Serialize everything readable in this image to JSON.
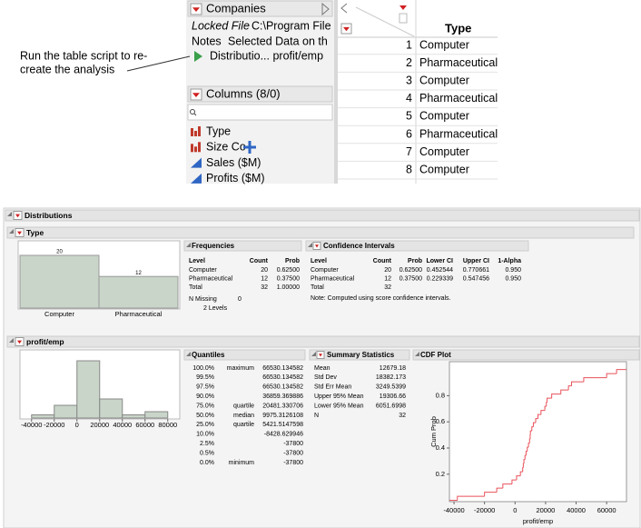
{
  "annotation": [
    "Run the table script to re-",
    "create the analysis"
  ],
  "data_table": {
    "title": "Companies",
    "locked": [
      "Locked File",
      "C:\\Program File"
    ],
    "notes": [
      "Notes",
      "Selected Data on th"
    ],
    "script": "Distributio... profit/emp",
    "columns_title": "Columns (8/0)",
    "columns": [
      "Type",
      "Size Co",
      "Sales ($M)",
      "Profits ($M)"
    ],
    "header": "Type",
    "rows": [
      [
        "1",
        "Computer"
      ],
      [
        "2",
        "Pharmaceutical"
      ],
      [
        "3",
        "Computer"
      ],
      [
        "4",
        "Pharmaceutical"
      ],
      [
        "5",
        "Computer"
      ],
      [
        "6",
        "Pharmaceutical"
      ],
      [
        "7",
        "Computer"
      ],
      [
        "8",
        "Computer"
      ]
    ]
  },
  "report": {
    "title": "Distributions",
    "type_section": {
      "title": "Type",
      "chart": {
        "type": "bar",
        "categories": [
          "Computer",
          "Pharmaceutical"
        ],
        "values": [
          20,
          12
        ],
        "color": "#c9d5c9"
      },
      "frequencies": {
        "title": "Frequencies",
        "header": [
          "Level",
          "Count",
          "Prob"
        ],
        "rows": [
          [
            "Computer",
            "20",
            "0.62500"
          ],
          [
            "Pharmaceutical",
            "12",
            "0.37500"
          ],
          [
            "Total",
            "32",
            "1.00000"
          ]
        ],
        "n_missing": [
          "N Missing",
          "0"
        ],
        "levels": "2 Levels"
      },
      "ci": {
        "title": "Confidence Intervals",
        "header": [
          "Level",
          "Count",
          "Prob",
          "Lower CI",
          "Upper CI",
          "1-Alpha"
        ],
        "rows": [
          [
            "Computer",
            "20",
            "0.62500",
            "0.452544",
            "0.770661",
            "0.950"
          ],
          [
            "Pharmaceutical",
            "12",
            "0.37500",
            "0.229339",
            "0.547456",
            "0.950"
          ],
          [
            "Total",
            "32"
          ]
        ],
        "note": "Note: Computed using score confidence intervals."
      }
    },
    "profit_section": {
      "title": "profit/emp",
      "histogram": {
        "type": "histogram",
        "bins": [
          -40000,
          -20000,
          0,
          20000,
          40000,
          60000,
          80000
        ],
        "counts": [
          1,
          4,
          18,
          6,
          1,
          2
        ],
        "color": "#c9d5c9",
        "xlim": [
          -47000,
          89000
        ],
        "xticks": [
          -40000,
          -20000,
          0,
          20000,
          40000,
          60000,
          80000
        ]
      },
      "quantiles": {
        "title": "Quantiles",
        "rows": [
          [
            "100.0%",
            "maximum",
            "66530.134582"
          ],
          [
            "99.5%",
            "66530.134582"
          ],
          [
            "97.5%",
            "66530.134582"
          ],
          [
            "90.0%",
            "36859.369886"
          ],
          [
            "75.0%",
            "quartile",
            "20481.330706"
          ],
          [
            "50.0%",
            "median",
            "9975.3126108"
          ],
          [
            "25.0%",
            "quartile",
            "5421.5147598"
          ],
          [
            "10.0%",
            "-8428.629946"
          ],
          [
            "2.5%",
            "-37800"
          ],
          [
            "0.5%",
            "-37800"
          ],
          [
            "0.0%",
            "minimum",
            "-37800"
          ]
        ]
      },
      "summary": {
        "title": "Summary Statistics",
        "rows": [
          [
            "Mean",
            "12679.18"
          ],
          [
            "Std Dev",
            "18382.173"
          ],
          [
            "Std Err Mean",
            "3249.5399"
          ],
          [
            "Upper 95% Mean",
            "19306.66"
          ],
          [
            "Lower 95% Mean",
            "6051.6998"
          ],
          [
            "N",
            "32"
          ]
        ]
      },
      "cdf": {
        "type": "line",
        "title": "CDF Plot",
        "xlabel": "profit/emp",
        "ylabel": "Cum Prob",
        "color": "#e8525a",
        "x": [
          -37800,
          -20000,
          -12000,
          -8000,
          -2000,
          1000,
          3500,
          5000,
          5400,
          5800,
          6500,
          7200,
          8000,
          8800,
          9500,
          9900,
          10050,
          11000,
          12000,
          13500,
          15000,
          17000,
          19500,
          20500,
          21000,
          24000,
          30000,
          35000,
          37000,
          45000,
          60000,
          66530
        ],
        "values": [
          0.03125,
          0.0625,
          0.09375,
          0.125,
          0.15625,
          0.1875,
          0.21875,
          0.25,
          0.28125,
          0.3125,
          0.34375,
          0.375,
          0.40625,
          0.4375,
          0.46875,
          0.5,
          0.53125,
          0.5625,
          0.59375,
          0.625,
          0.65625,
          0.6875,
          0.71875,
          0.75,
          0.78125,
          0.8125,
          0.84375,
          0.875,
          0.90625,
          0.9375,
          0.96875,
          1
        ],
        "xlim": [
          -43000,
          73000
        ],
        "ylim": [
          -0.01,
          1.06
        ],
        "xticks": [
          -40000,
          -20000,
          0,
          20000,
          40000,
          60000
        ],
        "yticks": [
          0.2,
          0.4,
          0.6,
          0.8
        ]
      }
    }
  }
}
